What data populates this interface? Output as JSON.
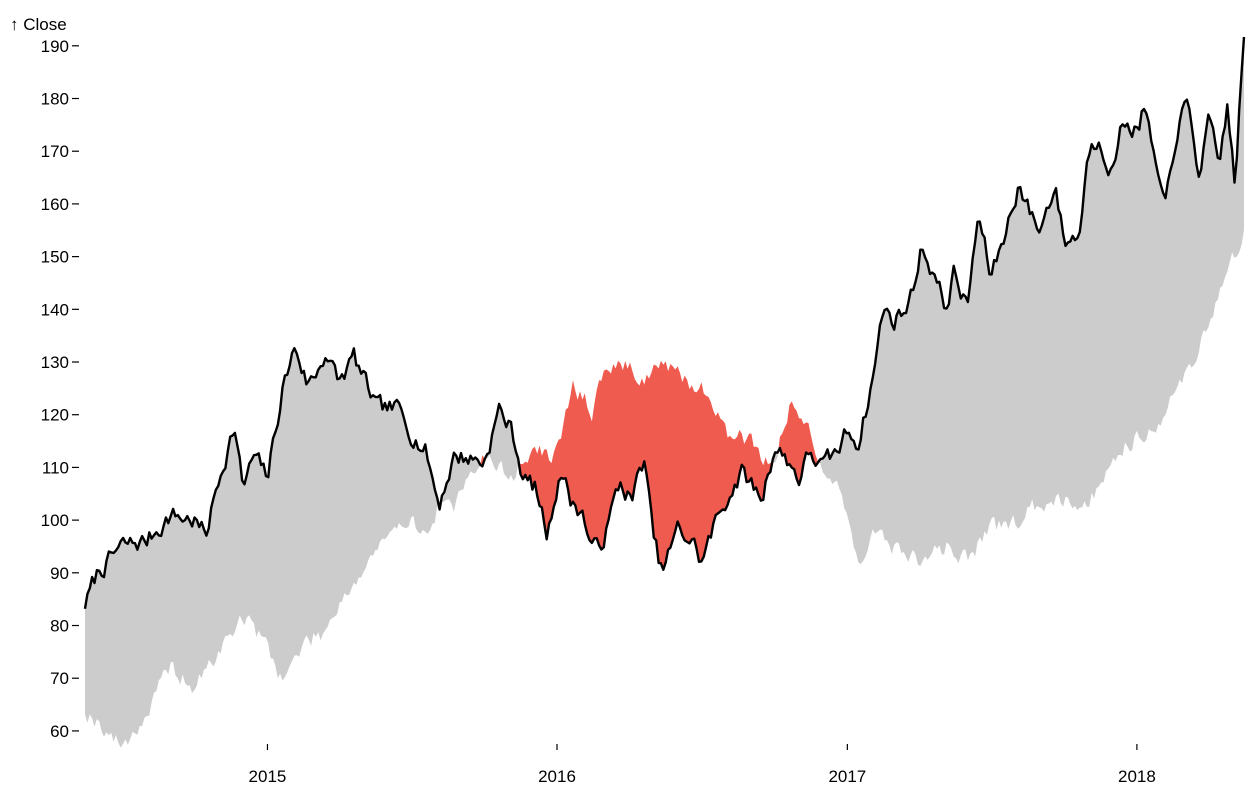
{
  "chart_data": {
    "type": "line",
    "title": "",
    "xlabel": "",
    "ylabel": "↑ Close",
    "y_ticks": [
      "60",
      "70",
      "80",
      "90",
      "100",
      "110",
      "120",
      "130",
      "140",
      "150",
      "160",
      "170",
      "180",
      "190"
    ],
    "x_ticks": [
      {
        "date": "2015-01-01",
        "label": "2015"
      },
      {
        "date": "2016-01-01",
        "label": "2016"
      },
      {
        "date": "2017-01-01",
        "label": "2017"
      },
      {
        "date": "2018-01-01",
        "label": "2018"
      }
    ],
    "xlim": [
      "2014-05-16",
      "2018-05-16"
    ],
    "ylim": [
      56,
      193
    ],
    "grid": false,
    "legend": "none",
    "colors": {
      "above": "#cccccc",
      "below": "#ef5b4f",
      "line": "#000000"
    },
    "series": [
      {
        "role": "close",
        "x": [
          "2014-05-16",
          "2014-06-01",
          "2014-07-01",
          "2014-08-01",
          "2014-09-01",
          "2014-10-01",
          "2014-10-15",
          "2014-11-01",
          "2014-11-20",
          "2014-12-01",
          "2014-12-15",
          "2015-01-01",
          "2015-01-20",
          "2015-02-05",
          "2015-02-20",
          "2015-03-01",
          "2015-03-15",
          "2015-04-01",
          "2015-04-20",
          "2015-05-01",
          "2015-05-20",
          "2015-06-15",
          "2015-07-01",
          "2015-07-20",
          "2015-08-05",
          "2015-08-24",
          "2015-09-10",
          "2015-10-01",
          "2015-10-20",
          "2015-11-05",
          "2015-11-20",
          "2015-12-05",
          "2015-12-20",
          "2016-01-05",
          "2016-01-20",
          "2016-02-01",
          "2016-02-15",
          "2016-03-01",
          "2016-03-20",
          "2016-04-05",
          "2016-04-20",
          "2016-05-01",
          "2016-05-12",
          "2016-06-01",
          "2016-06-20",
          "2016-07-01",
          "2016-07-20",
          "2016-08-05",
          "2016-08-20",
          "2016-09-01",
          "2016-09-15",
          "2016-10-01",
          "2016-10-20",
          "2016-11-01",
          "2016-11-15",
          "2016-12-01",
          "2016-12-20",
          "2017-01-01",
          "2017-01-15",
          "2017-02-01",
          "2017-02-15",
          "2017-03-01",
          "2017-03-20",
          "2017-04-05",
          "2017-04-20",
          "2017-05-05",
          "2017-05-15",
          "2017-06-01",
          "2017-06-15",
          "2017-07-01",
          "2017-07-20",
          "2017-08-05",
          "2017-08-20",
          "2017-09-01",
          "2017-09-20",
          "2017-10-01",
          "2017-10-20",
          "2017-11-01",
          "2017-11-15",
          "2017-12-01",
          "2017-12-15",
          "2018-01-01",
          "2018-01-10",
          "2018-01-20",
          "2018-02-05",
          "2018-02-20",
          "2018-03-05",
          "2018-03-20",
          "2018-04-01",
          "2018-04-15",
          "2018-04-25",
          "2018-05-05",
          "2018-05-16"
        ],
        "values": [
          84,
          90,
          95,
          96,
          101,
          100,
          97,
          108,
          118,
          106,
          112,
          108,
          125,
          133,
          126,
          127,
          132,
          126,
          131,
          127,
          121,
          121,
          117,
          113,
          103,
          112,
          112,
          111,
          121,
          117,
          108,
          106,
          97,
          110,
          103,
          102,
          94,
          97,
          107,
          104,
          112,
          97,
          90,
          98,
          96,
          92,
          100,
          105,
          109,
          107,
          104,
          114,
          111,
          108,
          113,
          110,
          113,
          117,
          115,
          126,
          140,
          138,
          141,
          152,
          147,
          140,
          147,
          140,
          158,
          146,
          155,
          164,
          158,
          155,
          164,
          153,
          154,
          170,
          173,
          166,
          176,
          174,
          178,
          171,
          158,
          174,
          179,
          166,
          175,
          167,
          179,
          163,
          193
        ]
      },
      {
        "role": "baseline",
        "x": [
          "2014-05-16",
          "2014-06-01",
          "2014-07-01",
          "2014-08-01",
          "2014-09-01",
          "2014-10-01",
          "2014-11-01",
          "2014-12-01",
          "2015-01-01",
          "2015-01-20",
          "2015-02-20",
          "2015-03-15",
          "2015-04-01",
          "2015-05-01",
          "2015-05-20",
          "2015-06-15",
          "2015-07-01",
          "2015-07-20",
          "2015-08-05",
          "2015-08-24",
          "2015-09-10",
          "2015-10-01",
          "2015-11-05",
          "2015-12-05",
          "2015-12-20",
          "2016-01-05",
          "2016-01-20",
          "2016-02-15",
          "2016-03-01",
          "2016-03-20",
          "2016-04-20",
          "2016-05-12",
          "2016-06-01",
          "2016-07-01",
          "2016-07-20",
          "2016-08-05",
          "2016-08-20",
          "2016-09-15",
          "2016-10-01",
          "2016-10-20",
          "2016-11-15",
          "2016-12-01",
          "2016-12-20",
          "2017-01-15",
          "2017-02-01",
          "2017-03-01",
          "2017-04-05",
          "2017-05-05",
          "2017-06-01",
          "2017-07-01",
          "2017-08-05",
          "2017-09-20",
          "2017-11-01",
          "2017-12-01",
          "2018-01-01",
          "2018-02-05",
          "2018-03-05",
          "2018-04-01",
          "2018-05-16"
        ],
        "values": [
          64,
          62,
          57,
          63,
          72,
          68,
          75,
          82,
          76,
          70,
          77,
          79,
          85,
          90,
          95,
          97,
          102,
          96,
          103,
          101,
          110,
          112,
          108,
          114,
          112,
          113,
          126,
          121,
          128,
          130,
          127,
          130,
          127,
          125,
          122,
          115,
          117,
          112,
          112,
          121,
          118,
          110,
          106,
          93,
          97,
          95,
          92,
          95,
          93,
          98,
          100,
          105,
          103,
          112,
          116,
          120,
          128,
          137,
          155
        ]
      }
    ]
  }
}
